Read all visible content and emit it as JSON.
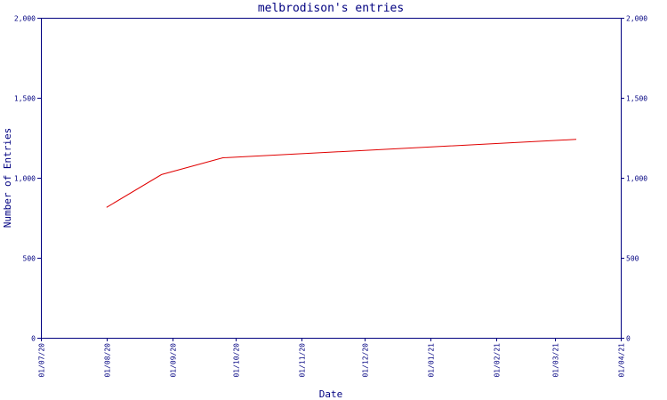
{
  "chart_data": {
    "type": "line",
    "title": "melbrodison's entries",
    "xlabel": "Date",
    "ylabel": "Number of Entries",
    "ylim": [
      0,
      2000
    ],
    "xlim": [
      "2020-07-01",
      "2021-04-01"
    ],
    "y_ticks": [
      0,
      500,
      1000,
      1500,
      2000
    ],
    "y_tick_labels": [
      "0",
      "500",
      "1,000",
      "1,500",
      "2,000"
    ],
    "x_ticks": [
      "2020-07-01",
      "2020-08-01",
      "2020-09-01",
      "2020-10-01",
      "2020-11-01",
      "2020-12-01",
      "2021-01-01",
      "2021-02-01",
      "2021-03-01",
      "2021-04-01"
    ],
    "x_tick_labels": [
      "01/07/20",
      "01/08/20",
      "01/09/20",
      "01/10/20",
      "01/11/20",
      "01/12/20",
      "01/01/21",
      "01/02/21",
      "01/03/21",
      "01/04/21"
    ],
    "grid": false,
    "legend": "none",
    "color": "#e00000",
    "series": [
      {
        "x": [
          "2020-08-01",
          "2020-08-27",
          "2020-09-25",
          "2021-03-11"
        ],
        "y": [
          815,
          1020,
          1125,
          1240
        ]
      }
    ]
  }
}
